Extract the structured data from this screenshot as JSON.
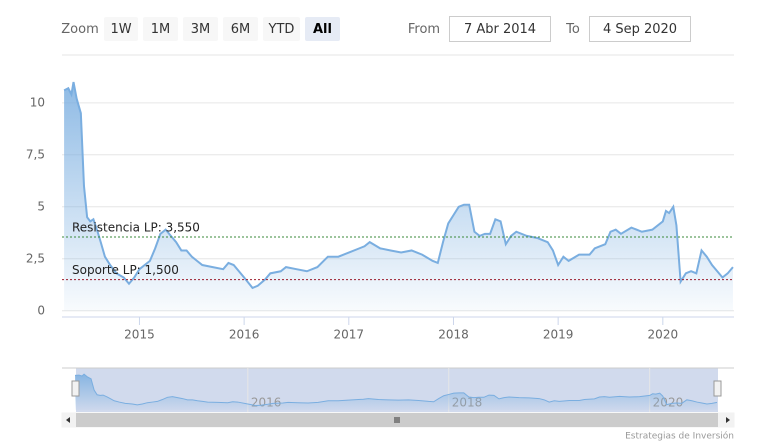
{
  "zoom": {
    "label": "Zoom",
    "buttons": [
      "1W",
      "1M",
      "3M",
      "6M",
      "YTD",
      "All"
    ],
    "selected": "All"
  },
  "range": {
    "from_label": "From",
    "from": "7 Abr 2014",
    "to_label": "To",
    "to": "4 Sep 2020"
  },
  "credits": "Estrategias de Inversión",
  "chart_data": {
    "type": "area",
    "color": "#7aaee0",
    "grid": true,
    "xlim": [
      2014.26,
      2020.68
    ],
    "xticks": [
      2015,
      2016,
      2017,
      2018,
      2019,
      2020
    ],
    "ylim": [
      -0.3,
      12.3
    ],
    "yticks": [
      0,
      {
        "value": 2.5,
        "label": "2,5"
      },
      5,
      {
        "value": 7.5,
        "label": "7,5"
      },
      10
    ],
    "plot_lines": [
      {
        "label": "Resistencia LP: 3,550",
        "value": 3.55,
        "color": "#3a8a3a"
      },
      {
        "label": "Soporte LP: 1,500",
        "value": 1.5,
        "color": "#9b1c2c"
      }
    ],
    "navigator_xticks": [
      2016,
      2018,
      2020
    ],
    "x": [
      2014.28,
      2014.32,
      2014.35,
      2014.37,
      2014.4,
      2014.44,
      2014.47,
      2014.5,
      2014.53,
      2014.56,
      2014.6,
      2014.63,
      2014.67,
      2014.72,
      2014.78,
      2014.85,
      2014.9,
      2014.95,
      2015.0,
      2015.05,
      2015.1,
      2015.15,
      2015.2,
      2015.25,
      2015.3,
      2015.35,
      2015.4,
      2015.45,
      2015.5,
      2015.55,
      2015.6,
      2015.7,
      2015.8,
      2015.85,
      2015.9,
      2016.0,
      2016.08,
      2016.13,
      2016.2,
      2016.25,
      2016.35,
      2016.4,
      2016.5,
      2016.6,
      2016.7,
      2016.8,
      2016.9,
      2017.0,
      2017.1,
      2017.15,
      2017.2,
      2017.3,
      2017.4,
      2017.5,
      2017.6,
      2017.7,
      2017.8,
      2017.85,
      2017.9,
      2017.95,
      2018.0,
      2018.05,
      2018.1,
      2018.15,
      2018.2,
      2018.25,
      2018.3,
      2018.35,
      2018.4,
      2018.45,
      2018.5,
      2018.55,
      2018.6,
      2018.7,
      2018.8,
      2018.9,
      2018.95,
      2019.0,
      2019.05,
      2019.1,
      2019.2,
      2019.3,
      2019.35,
      2019.45,
      2019.5,
      2019.55,
      2019.6,
      2019.7,
      2019.8,
      2019.9,
      2020.0,
      2020.03,
      2020.06,
      2020.1,
      2020.13,
      2020.17,
      2020.22,
      2020.27,
      2020.32,
      2020.37,
      2020.42,
      2020.47,
      2020.52,
      2020.57,
      2020.62,
      2020.67
    ],
    "values": [
      10.6,
      10.7,
      10.4,
      11.0,
      10.2,
      9.5,
      6.0,
      4.5,
      4.3,
      4.4,
      3.8,
      3.3,
      2.6,
      2.2,
      1.8,
      1.6,
      1.3,
      1.6,
      2.0,
      2.2,
      2.4,
      3.0,
      3.7,
      3.9,
      3.6,
      3.3,
      2.9,
      2.9,
      2.6,
      2.4,
      2.2,
      2.1,
      2.0,
      2.3,
      2.2,
      1.6,
      1.1,
      1.2,
      1.5,
      1.8,
      1.9,
      2.1,
      2.0,
      1.9,
      2.1,
      2.6,
      2.6,
      2.8,
      3.0,
      3.1,
      3.3,
      3.0,
      2.9,
      2.8,
      2.9,
      2.7,
      2.4,
      2.3,
      3.3,
      4.2,
      4.6,
      5.0,
      5.1,
      5.1,
      3.8,
      3.6,
      3.7,
      3.7,
      4.4,
      4.3,
      3.2,
      3.6,
      3.8,
      3.6,
      3.5,
      3.3,
      2.9,
      2.2,
      2.6,
      2.4,
      2.7,
      2.7,
      3.0,
      3.2,
      3.8,
      3.9,
      3.7,
      4.0,
      3.8,
      3.9,
      4.3,
      4.8,
      4.7,
      5.0,
      4.1,
      1.4,
      1.8,
      1.9,
      1.8,
      2.9,
      2.6,
      2.2,
      1.9,
      1.6,
      1.8,
      2.1
    ]
  }
}
